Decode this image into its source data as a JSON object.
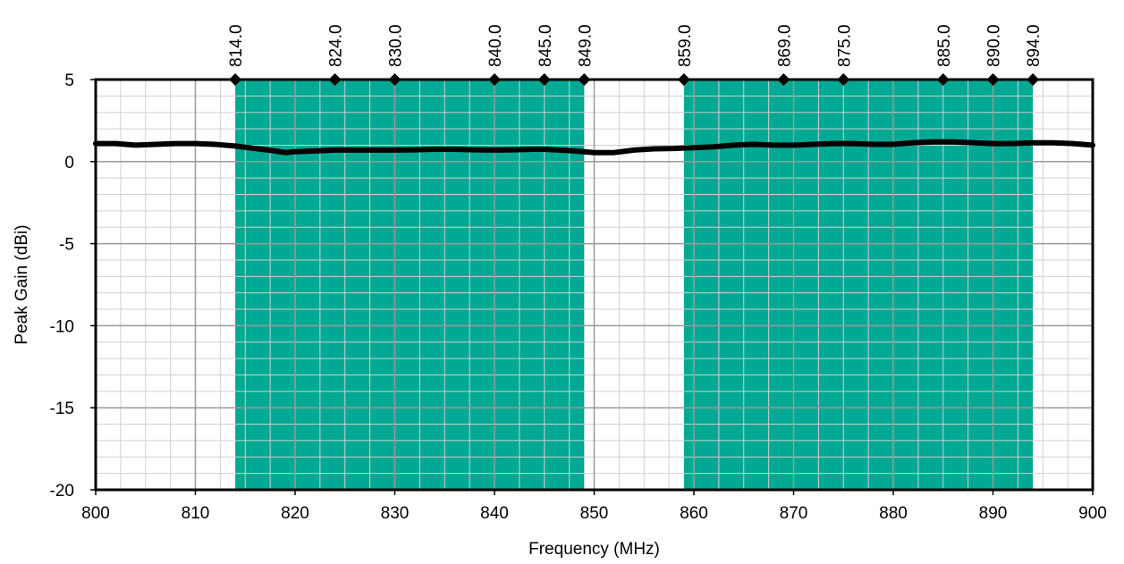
{
  "chart_data": {
    "type": "line",
    "title": "",
    "xlabel": "Frequency (MHz)",
    "ylabel": "Peak Gain (dBi)",
    "xlim": [
      800,
      900
    ],
    "ylim": [
      -20,
      5
    ],
    "x_ticks": [
      "800",
      "810",
      "820",
      "830",
      "840",
      "850",
      "860",
      "870",
      "880",
      "890",
      "900"
    ],
    "y_ticks": [
      "5",
      "0",
      "-5",
      "-10",
      "-15",
      "-20"
    ],
    "x_tick_values": [
      800,
      810,
      820,
      830,
      840,
      850,
      860,
      870,
      880,
      890,
      900
    ],
    "y_tick_values": [
      5,
      0,
      -5,
      -10,
      -15,
      -20
    ],
    "grid": true,
    "colors": {
      "band": "#00a993",
      "line": "#000000",
      "grid": "#b0b0b0"
    },
    "bands": [
      {
        "x_start": 814,
        "x_end": 849
      },
      {
        "x_start": 859,
        "x_end": 894
      }
    ],
    "markers": [
      {
        "x": 814,
        "label": "814.0"
      },
      {
        "x": 824,
        "label": "824.0"
      },
      {
        "x": 830,
        "label": "830.0"
      },
      {
        "x": 840,
        "label": "840.0"
      },
      {
        "x": 845,
        "label": "845.0"
      },
      {
        "x": 849,
        "label": "849.0"
      },
      {
        "x": 859,
        "label": "859.0"
      },
      {
        "x": 869,
        "label": "869.0"
      },
      {
        "x": 875,
        "label": "875.0"
      },
      {
        "x": 885,
        "label": "885.0"
      },
      {
        "x": 890,
        "label": "890.0"
      },
      {
        "x": 894,
        "label": "894.0"
      }
    ],
    "series": [
      {
        "x": [
          800,
          802,
          804,
          806,
          808,
          810,
          812,
          814,
          816,
          818,
          819,
          820,
          822,
          824,
          826,
          828,
          830,
          832,
          834,
          836,
          838,
          840,
          842,
          844,
          845,
          846,
          848,
          850,
          852,
          854,
          856,
          858,
          860,
          862,
          864,
          866,
          868,
          870,
          872,
          874,
          876,
          878,
          880,
          882,
          884,
          886,
          888,
          890,
          892,
          894,
          896,
          898,
          900
        ],
        "values": [
          1.1,
          1.1,
          1.0,
          1.05,
          1.1,
          1.1,
          1.05,
          0.95,
          0.8,
          0.65,
          0.55,
          0.6,
          0.65,
          0.7,
          0.7,
          0.7,
          0.7,
          0.72,
          0.75,
          0.75,
          0.72,
          0.7,
          0.72,
          0.75,
          0.75,
          0.72,
          0.65,
          0.55,
          0.55,
          0.7,
          0.78,
          0.8,
          0.85,
          0.9,
          1.0,
          1.05,
          1.0,
          1.0,
          1.05,
          1.1,
          1.1,
          1.05,
          1.05,
          1.15,
          1.2,
          1.2,
          1.15,
          1.1,
          1.1,
          1.15,
          1.15,
          1.1,
          1.0
        ]
      }
    ]
  }
}
